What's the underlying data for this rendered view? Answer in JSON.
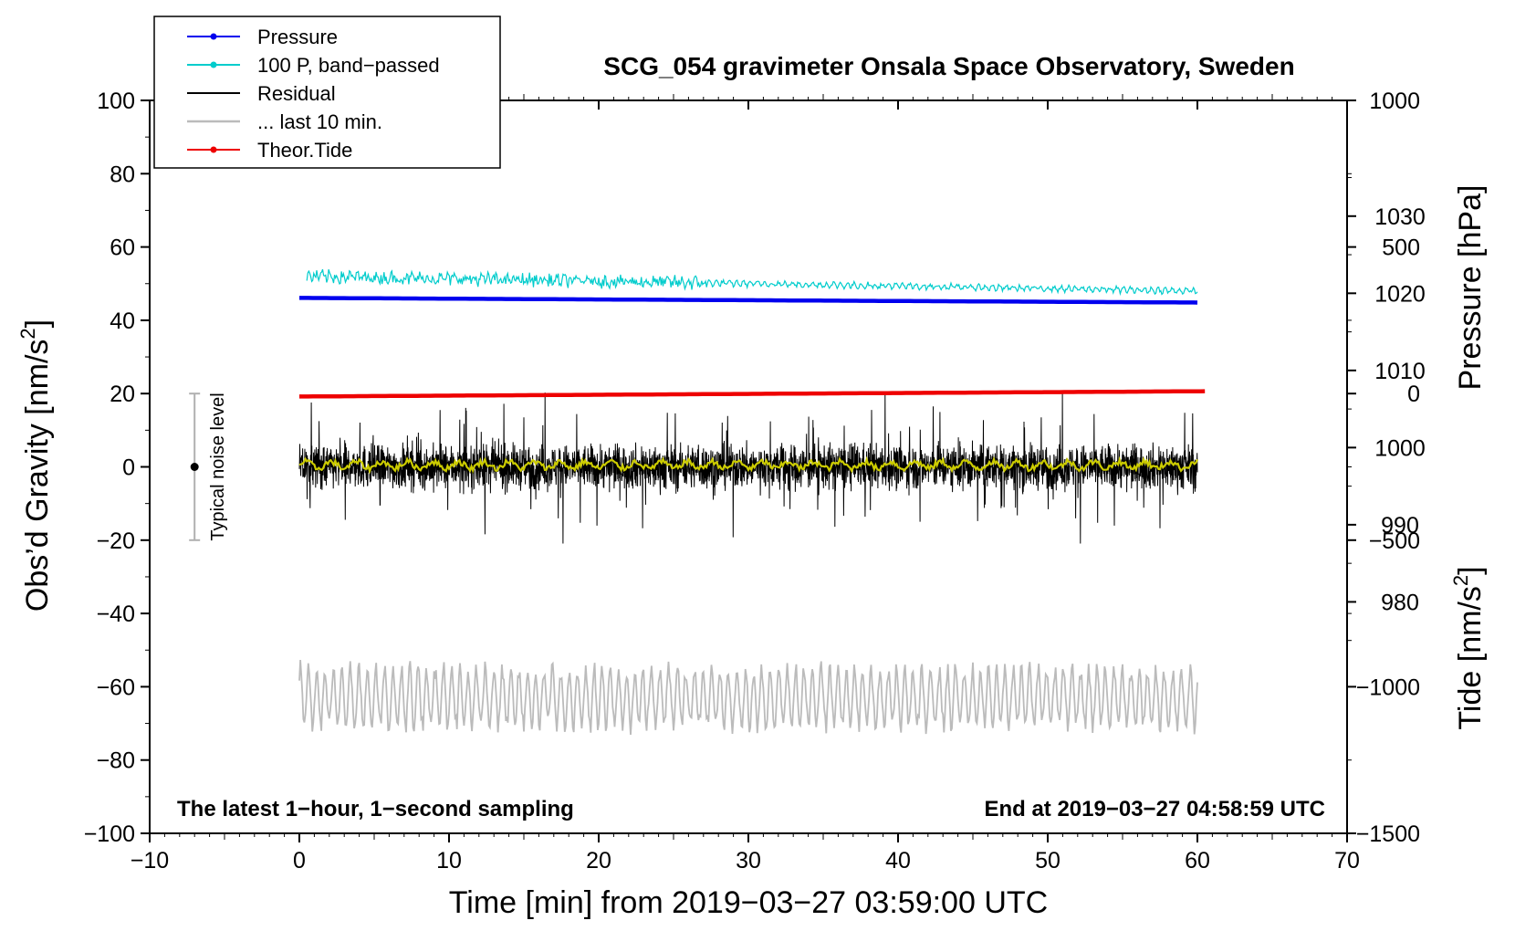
{
  "chart_data": {
    "type": "line",
    "title": "SCG_054 gravimeter Onsala Space Observatory, Sweden",
    "xlabel": "Time [min] from 2019−03−27 03:59:00 UTC",
    "ylabel": "Obs’d Gravity [nm/s",
    "ylabel_sup": "2",
    "ylabel_end": "]",
    "y2label": "Pressure [hPa]",
    "y3label": "Tide [nm/s",
    "y3label_sup": "2",
    "y3label_end": "]",
    "xlim": [
      -10,
      70
    ],
    "ylim": [
      -100,
      100
    ],
    "xticks": [
      -10,
      0,
      10,
      20,
      30,
      40,
      50,
      60,
      70
    ],
    "xtick_labels": [
      "−10",
      "0",
      "10",
      "20",
      "30",
      "40",
      "50",
      "60",
      "70"
    ],
    "yticks": [
      -100,
      -80,
      -60,
      -40,
      -20,
      0,
      20,
      40,
      60,
      80,
      100
    ],
    "ytick_labels": [
      "−100",
      "−80",
      "−60",
      "−40",
      "−20",
      "0",
      "20",
      "40",
      "60",
      "80",
      "100"
    ],
    "pressure_axis": {
      "lim": [
        950,
        1045
      ],
      "ticks": [
        980,
        990,
        1000,
        1010,
        1020,
        1030
      ],
      "labels": [
        "980",
        "990",
        "1000",
        "1010",
        "1020",
        "1030"
      ]
    },
    "tide_axis": {
      "lim": [
        -1500,
        1000
      ],
      "ticks": [
        -1500,
        -1000,
        -500,
        0,
        500,
        1000
      ],
      "labels": [
        "−1500",
        "−1000",
        "−500",
        "0",
        "500",
        "1000"
      ]
    },
    "legend": {
      "position": "top-left",
      "entries": [
        {
          "label": "Pressure",
          "color": "#0000ee",
          "marker": true
        },
        {
          "label": "100 P, band−passed",
          "color": "#00cccc",
          "marker": true
        },
        {
          "label": "Residual",
          "color": "#000000",
          "marker": false
        },
        {
          "label": "... last 10 min.",
          "color": "#bbbbbb",
          "marker": false
        },
        {
          "label": "Theor.Tide",
          "color": "#ee0000",
          "marker": true
        }
      ]
    },
    "series": [
      {
        "name": "Pressure",
        "color": "#0000ee",
        "axis": "pressure",
        "x_range": [
          0,
          60
        ],
        "start": 1019.4,
        "end": 1018.8
      },
      {
        "name": "100 P, band−passed",
        "color": "#00cccc",
        "axis": "gravity",
        "x_range": [
          0.5,
          60
        ],
        "start": 52,
        "end": 48
      },
      {
        "name": "Residual",
        "color": "#000000",
        "axis": "gravity",
        "x_range": [
          0,
          60
        ],
        "mean": 0,
        "amplitude": 12
      },
      {
        "name": "Residual smoothed",
        "color": "#cccc00",
        "axis": "gravity",
        "x_range": [
          0,
          60
        ],
        "mean": 0.5
      },
      {
        "name": "... last 10 min.",
        "color": "#bbbbbb",
        "axis": "gravity",
        "x_range": [
          0,
          60
        ],
        "mean": -63,
        "amplitude": 9
      },
      {
        "name": "Theor.Tide",
        "color": "#ee0000",
        "axis": "tide",
        "x_range": [
          0,
          60.5
        ],
        "start": -10,
        "end": 8
      }
    ],
    "noise_bar": {
      "label": "Typical noise level",
      "x": -7,
      "y": 0,
      "low": -20,
      "high": 20
    },
    "annotations": {
      "left": "The latest 1−hour, 1−second sampling",
      "right": "End at 2019−03−27 04:58:59 UTC"
    },
    "grid": false
  }
}
